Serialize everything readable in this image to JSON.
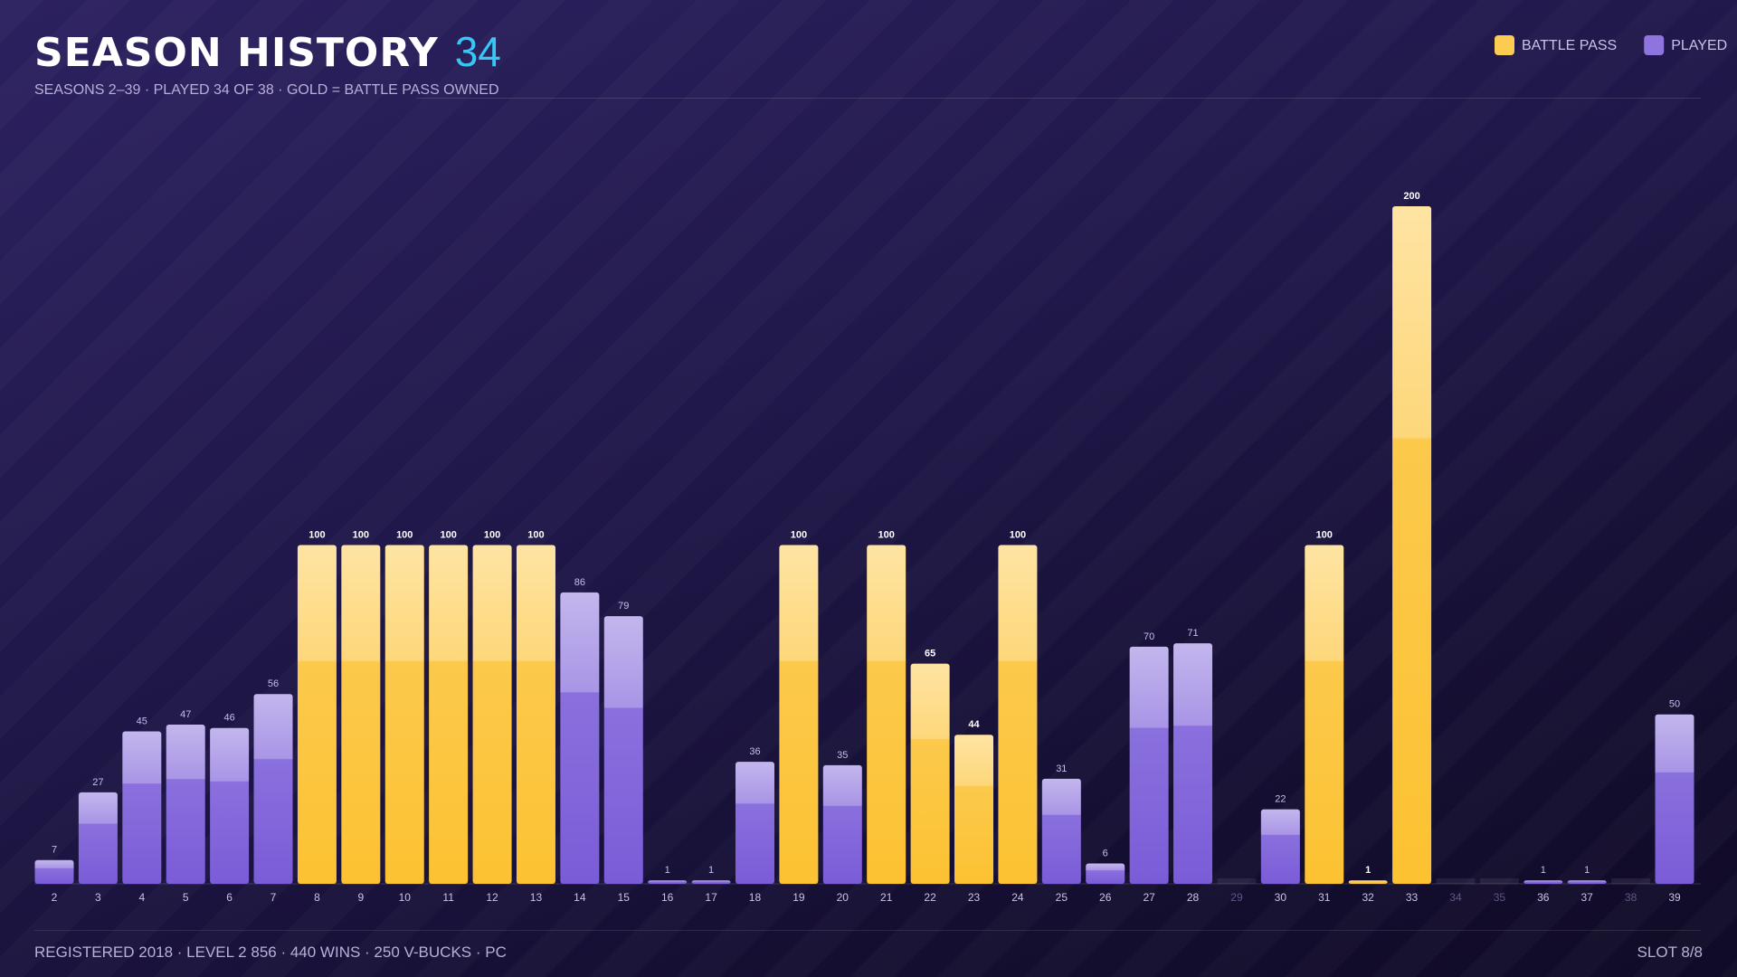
{
  "header": {
    "title": "SEASON HISTORY",
    "season_count": 34,
    "subtitle": "SEASONS 2–39 · PLAYED 34 OF 38 · GOLD = BATTLE PASS OWNED"
  },
  "footer": {
    "info": "REGISTERED 2018 · LEVEL 2 856 · 440 WINS · 250 V-BUCKS · PC",
    "slot": "SLOT 8/8"
  },
  "chart_data": {
    "type": "bar",
    "stacked": false,
    "categories": [
      2,
      3,
      4,
      5,
      6,
      7,
      8,
      9,
      10,
      11,
      12,
      13,
      14,
      15,
      16,
      17,
      18,
      19,
      20,
      21,
      22,
      23,
      24,
      25,
      26,
      27,
      28,
      29,
      30,
      31,
      32,
      33,
      34,
      35,
      36,
      37,
      38,
      39
    ],
    "series": [
      {
        "name": "BATTLE PASS",
        "color": "#fcc232",
        "values": [
          null,
          null,
          null,
          null,
          null,
          null,
          100,
          100,
          100,
          100,
          100,
          100,
          null,
          null,
          null,
          null,
          null,
          100,
          null,
          100,
          65,
          44,
          100,
          null,
          null,
          null,
          null,
          null,
          null,
          100,
          1,
          200,
          null,
          null,
          null,
          null,
          null,
          null
        ]
      },
      {
        "name": "PLAYED",
        "color": "#7a5cd8",
        "values": [
          7,
          27,
          45,
          47,
          46,
          56,
          null,
          null,
          null,
          null,
          null,
          null,
          86,
          79,
          1,
          1,
          36,
          null,
          35,
          null,
          null,
          null,
          null,
          31,
          6,
          70,
          71,
          null,
          22,
          null,
          null,
          null,
          null,
          null,
          1,
          1,
          null,
          50
        ]
      }
    ],
    "ylim": [
      0,
      200
    ],
    "legend": "top-right"
  }
}
